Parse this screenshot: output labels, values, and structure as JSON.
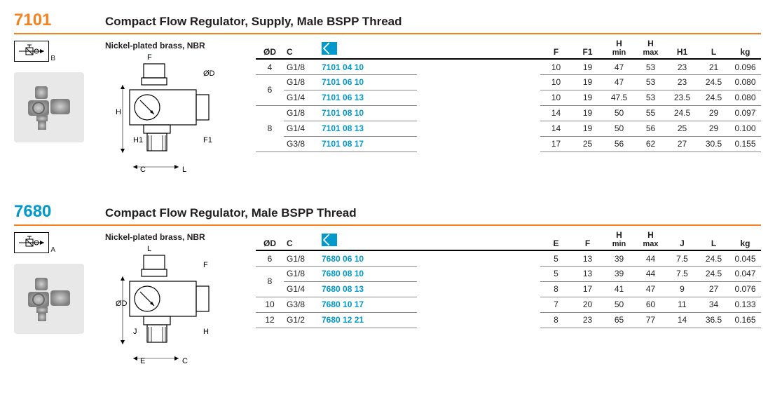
{
  "sections": [
    {
      "code": "7101",
      "code_color": "#f58220",
      "title": "Compact Flow Regulator, Supply, Male BSPP Thread",
      "material": "Nickel-plated brass, NBR",
      "symbol_sub": "B",
      "drawing_labels": [
        "F",
        "ØD",
        "H",
        "H1",
        "F1",
        "C",
        "L"
      ],
      "columns": [
        "ØD",
        "C",
        "icon",
        "F",
        "F1",
        "Hmin",
        "Hmax",
        "H1",
        "L",
        "kg"
      ],
      "rows": [
        {
          "od": "4",
          "od_span": 1,
          "c": "G1/8",
          "pn": "7101 04 10",
          "vals": [
            "10",
            "19",
            "47",
            "53",
            "23",
            "21",
            "0.096"
          ]
        },
        {
          "od": "6",
          "od_span": 2,
          "c": "G1/8",
          "pn": "7101 06 10",
          "vals": [
            "10",
            "19",
            "47",
            "53",
            "23",
            "24.5",
            "0.080"
          ]
        },
        {
          "od": null,
          "c": "G1/4",
          "pn": "7101 06 13",
          "vals": [
            "10",
            "19",
            "47.5",
            "53",
            "23.5",
            "24.5",
            "0.080"
          ]
        },
        {
          "od": "8",
          "od_span": 3,
          "c": "G1/8",
          "pn": "7101 08 10",
          "vals": [
            "14",
            "19",
            "50",
            "55",
            "24.5",
            "29",
            "0.097"
          ]
        },
        {
          "od": null,
          "c": "G1/4",
          "pn": "7101 08 13",
          "vals": [
            "14",
            "19",
            "50",
            "56",
            "25",
            "29",
            "0.100"
          ]
        },
        {
          "od": null,
          "c": "G3/8",
          "pn": "7101 08 17",
          "vals": [
            "17",
            "25",
            "56",
            "62",
            "27",
            "30.5",
            "0.155"
          ]
        }
      ]
    },
    {
      "code": "7680",
      "code_color": "#0099cc",
      "title": "Compact Flow Regulator, Male BSPP Thread",
      "material": "Nickel-plated brass, NBR",
      "symbol_sub": "A",
      "drawing_labels": [
        "L",
        "F",
        "ØD",
        "J",
        "H",
        "E",
        "C"
      ],
      "columns": [
        "ØD",
        "C",
        "icon",
        "E",
        "F",
        "Hmin",
        "Hmax",
        "J",
        "L",
        "kg"
      ],
      "rows": [
        {
          "od": "6",
          "od_span": 1,
          "c": "G1/8",
          "pn": "7680 06 10",
          "vals": [
            "5",
            "13",
            "39",
            "44",
            "7.5",
            "24.5",
            "0.045"
          ]
        },
        {
          "od": "8",
          "od_span": 2,
          "c": "G1/8",
          "pn": "7680 08 10",
          "vals": [
            "5",
            "13",
            "39",
            "44",
            "7.5",
            "24.5",
            "0.047"
          ]
        },
        {
          "od": null,
          "c": "G1/4",
          "pn": "7680 08 13",
          "vals": [
            "8",
            "17",
            "41",
            "47",
            "9",
            "27",
            "0.076"
          ]
        },
        {
          "od": "10",
          "od_span": 1,
          "c": "G3/8",
          "pn": "7680 10 17",
          "vals": [
            "7",
            "20",
            "50",
            "60",
            "11",
            "34",
            "0.133"
          ]
        },
        {
          "od": "12",
          "od_span": 1,
          "c": "G1/2",
          "pn": "7680 12 21",
          "vals": [
            "8",
            "23",
            "65",
            "77",
            "14",
            "36.5",
            "0.165"
          ]
        }
      ]
    }
  ],
  "header_labels": {
    "od": "ØD",
    "c": "C",
    "f": "F",
    "f1": "F1",
    "e": "E",
    "hmin_top": "H",
    "hmin_bot": "min",
    "hmax_top": "H",
    "hmax_bot": "max",
    "h1": "H1",
    "j": "J",
    "l": "L",
    "kg": "kg"
  }
}
